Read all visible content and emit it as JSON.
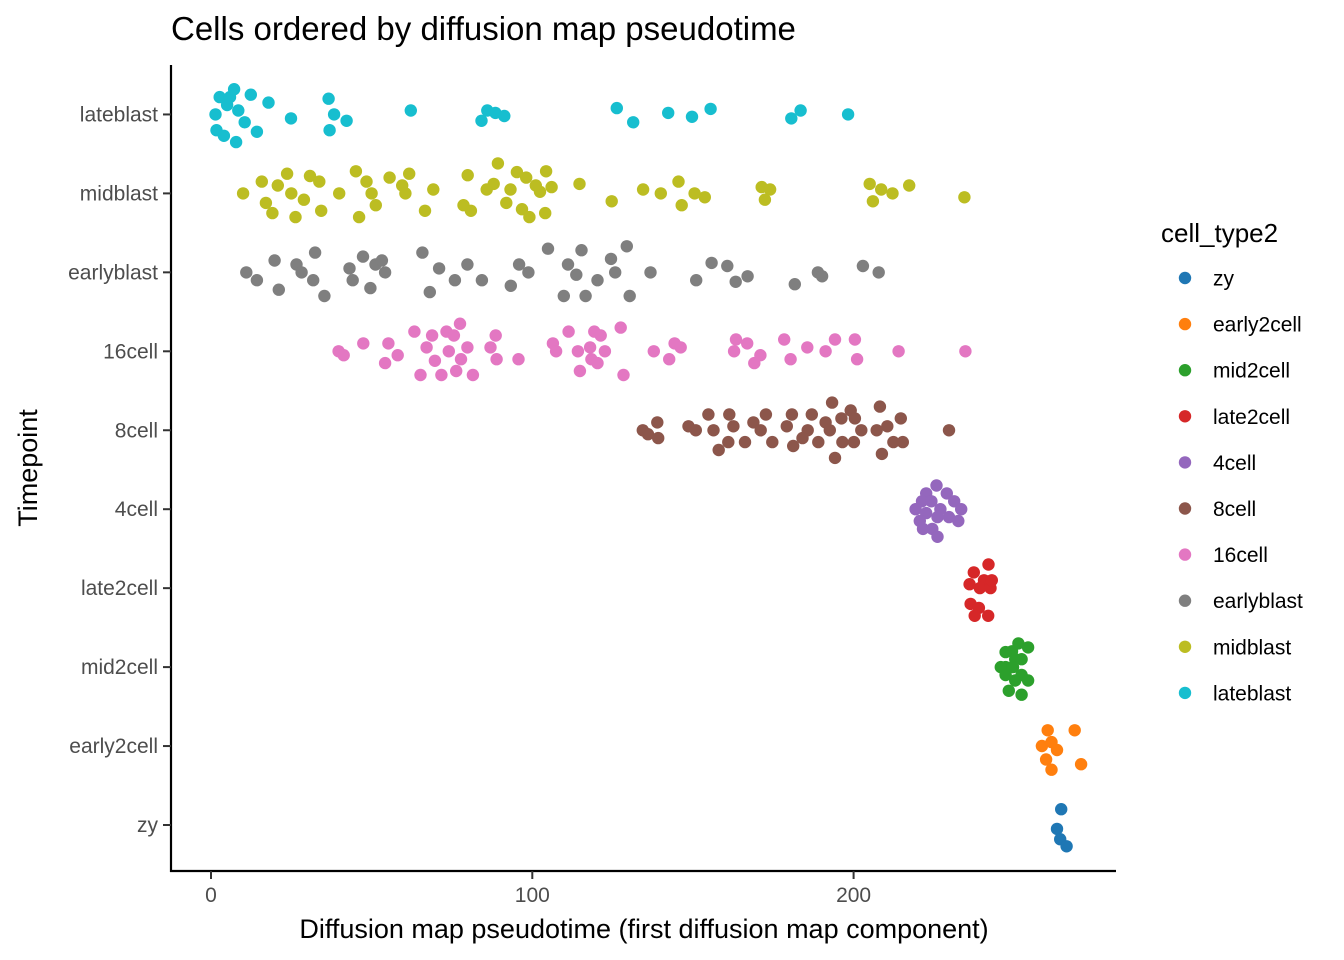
{
  "chart_data": {
    "type": "scatter",
    "title": "Cells ordered by diffusion map pseudotime",
    "xlabel": "Diffusion map pseudotime (first diffusion map component)",
    "ylabel": "Timepoint",
    "xlim": [
      -12,
      282
    ],
    "x_ticks": [
      0,
      100,
      200
    ],
    "categories": [
      "zy",
      "early2cell",
      "mid2cell",
      "late2cell",
      "4cell",
      "8cell",
      "16cell",
      "earlyblast",
      "midblast",
      "lateblast"
    ],
    "grid": false,
    "legend": {
      "title": "cell_type2",
      "placement": "right",
      "entries": [
        "zy",
        "early2cell",
        "mid2cell",
        "late2cell",
        "4cell",
        "8cell",
        "16cell",
        "earlyblast",
        "midblast",
        "lateblast"
      ]
    },
    "colors": {
      "zy": "#1f77b4",
      "early2cell": "#ff7f0e",
      "mid2cell": "#2ca02c",
      "late2cell": "#d62728",
      "4cell": "#9467bd",
      "8cell": "#8c564b",
      "16cell": "#e377c2",
      "earlyblast": "#7f7f7f",
      "midblast": "#bcbd22",
      "lateblast": "#17becf"
    },
    "series": [
      {
        "name": "zy",
        "points": [
          [
            264.6,
            0.2
          ],
          [
            263.3,
            -0.05
          ],
          [
            264.3,
            -0.18
          ],
          [
            266.3,
            -0.27
          ]
        ]
      },
      {
        "name": "early2cell",
        "points": [
          [
            260.4,
            0.2
          ],
          [
            268.8,
            0.2
          ],
          [
            258.6,
            0.0
          ],
          [
            261.6,
            0.05
          ],
          [
            263.3,
            -0.05
          ],
          [
            259.9,
            -0.17
          ],
          [
            270.8,
            -0.23
          ],
          [
            261.6,
            -0.3
          ]
        ]
      },
      {
        "name": "mid2cell",
        "points": [
          [
            251.3,
            0.3
          ],
          [
            249.3,
            0.2
          ],
          [
            254.3,
            0.25
          ],
          [
            247.3,
            0.19
          ],
          [
            250.3,
            0.1
          ],
          [
            247.3,
            0.0
          ],
          [
            252.3,
            0.1
          ],
          [
            245.8,
            0.0
          ],
          [
            249.6,
            0.0
          ],
          [
            252.3,
            -0.1
          ],
          [
            250.3,
            -0.17
          ],
          [
            254.3,
            -0.17
          ],
          [
            247.3,
            -0.1
          ],
          [
            248.3,
            -0.3
          ],
          [
            252.3,
            -0.35
          ]
        ]
      },
      {
        "name": "late2cell",
        "points": [
          [
            242.0,
            0.3
          ],
          [
            237.4,
            0.2
          ],
          [
            240.6,
            0.1
          ],
          [
            236.1,
            0.05
          ],
          [
            239.3,
            0.0
          ],
          [
            242.6,
            0.0
          ],
          [
            236.4,
            -0.2
          ],
          [
            243.0,
            0.1
          ],
          [
            239.0,
            -0.25
          ],
          [
            241.9,
            -0.35
          ],
          [
            237.7,
            -0.35
          ]
        ]
      },
      {
        "name": "4cell",
        "points": [
          [
            225.8,
            0.3
          ],
          [
            222.6,
            0.2
          ],
          [
            229.0,
            0.2
          ],
          [
            221.3,
            0.1
          ],
          [
            224.2,
            0.1
          ],
          [
            231.3,
            0.1
          ],
          [
            219.3,
            0.0
          ],
          [
            227.0,
            0.0
          ],
          [
            222.6,
            -0.05
          ],
          [
            233.5,
            0.0
          ],
          [
            226.1,
            -0.1
          ],
          [
            220.6,
            -0.15
          ],
          [
            229.7,
            -0.1
          ],
          [
            232.6,
            -0.15
          ],
          [
            224.5,
            -0.25
          ],
          [
            221.6,
            -0.25
          ],
          [
            226.1,
            -0.35
          ]
        ]
      },
      {
        "name": "8cell",
        "points": [
          [
            134.4,
            0.0
          ],
          [
            138.9,
            0.1
          ],
          [
            136.0,
            -0.05
          ],
          [
            139.2,
            -0.1
          ],
          [
            148.6,
            0.05
          ],
          [
            150.9,
            0.0
          ],
          [
            154.8,
            0.2
          ],
          [
            156.4,
            0.0
          ],
          [
            161.3,
            0.2
          ],
          [
            158.0,
            -0.25
          ],
          [
            162.6,
            0.05
          ],
          [
            166.2,
            -0.15
          ],
          [
            161.0,
            -0.15
          ],
          [
            168.8,
            0.1
          ],
          [
            171.1,
            0.0
          ],
          [
            172.7,
            0.2
          ],
          [
            174.7,
            -0.15
          ],
          [
            179.2,
            0.05
          ],
          [
            180.8,
            0.2
          ],
          [
            181.2,
            -0.2
          ],
          [
            185.7,
            0.0
          ],
          [
            184.1,
            -0.1
          ],
          [
            187.0,
            0.2
          ],
          [
            189.0,
            -0.15
          ],
          [
            191.3,
            0.1
          ],
          [
            193.3,
            0.35
          ],
          [
            192.6,
            0.0
          ],
          [
            194.2,
            -0.35
          ],
          [
            196.2,
            0.15
          ],
          [
            196.5,
            -0.15
          ],
          [
            199.1,
            0.25
          ],
          [
            200.4,
            0.15
          ],
          [
            200.1,
            -0.15
          ],
          [
            202.4,
            0.0
          ],
          [
            207.2,
            0.0
          ],
          [
            208.2,
            0.3
          ],
          [
            208.8,
            -0.3
          ],
          [
            210.5,
            0.05
          ],
          [
            212.4,
            -0.15
          ],
          [
            214.7,
            0.15
          ],
          [
            215.3,
            -0.15
          ],
          [
            229.7,
            0.0
          ]
        ]
      },
      {
        "name": "16cell",
        "points": [
          [
            39.7,
            0.0
          ],
          [
            41.3,
            -0.05
          ],
          [
            47.4,
            0.1
          ],
          [
            55.2,
            0.1
          ],
          [
            54.2,
            -0.15
          ],
          [
            58.1,
            -0.05
          ],
          [
            63.3,
            0.25
          ],
          [
            65.2,
            -0.3
          ],
          [
            67.1,
            0.05
          ],
          [
            68.8,
            0.2
          ],
          [
            69.7,
            -0.12
          ],
          [
            71.7,
            -0.3
          ],
          [
            73.3,
            0.25
          ],
          [
            74.0,
            0.0
          ],
          [
            75.6,
            0.2
          ],
          [
            77.5,
            0.35
          ],
          [
            76.3,
            -0.25
          ],
          [
            77.8,
            -0.1
          ],
          [
            79.8,
            0.05
          ],
          [
            81.5,
            -0.3
          ],
          [
            87.0,
            0.05
          ],
          [
            88.6,
            0.2
          ],
          [
            88.9,
            -0.1
          ],
          [
            95.7,
            -0.1
          ],
          [
            106.4,
            0.1
          ],
          [
            107.4,
            0.0
          ],
          [
            111.3,
            0.25
          ],
          [
            114.2,
            0.0
          ],
          [
            114.8,
            -0.25
          ],
          [
            118.0,
            0.05
          ],
          [
            119.3,
            0.25
          ],
          [
            118.4,
            -0.1
          ],
          [
            120.3,
            -0.15
          ],
          [
            121.3,
            0.2
          ],
          [
            122.6,
            0.0
          ],
          [
            127.5,
            0.3
          ],
          [
            128.4,
            -0.3
          ],
          [
            137.8,
            0.0
          ],
          [
            142.6,
            -0.1
          ],
          [
            144.3,
            0.1
          ],
          [
            146.2,
            0.05
          ],
          [
            163.4,
            0.15
          ],
          [
            162.8,
            0.0
          ],
          [
            166.9,
            0.1
          ],
          [
            169.1,
            -0.15
          ],
          [
            171.0,
            -0.05
          ],
          [
            178.4,
            0.15
          ],
          [
            180.4,
            -0.1
          ],
          [
            185.6,
            0.05
          ],
          [
            191.3,
            0.0
          ],
          [
            194.2,
            0.15
          ],
          [
            200.4,
            0.15
          ],
          [
            201.1,
            -0.1
          ],
          [
            214.0,
            0.0
          ],
          [
            234.8,
            0.0
          ]
        ]
      },
      {
        "name": "earlyblast",
        "points": [
          [
            11.0,
            0.0
          ],
          [
            14.3,
            -0.1
          ],
          [
            19.8,
            0.15
          ],
          [
            21.1,
            -0.22
          ],
          [
            26.6,
            0.1
          ],
          [
            28.2,
            0.0
          ],
          [
            31.8,
            -0.1
          ],
          [
            32.4,
            0.25
          ],
          [
            35.3,
            -0.3
          ],
          [
            43.1,
            0.05
          ],
          [
            44.1,
            -0.1
          ],
          [
            47.3,
            0.2
          ],
          [
            49.6,
            -0.2
          ],
          [
            51.2,
            0.1
          ],
          [
            53.2,
            0.15
          ],
          [
            54.2,
            0.0
          ],
          [
            65.8,
            0.25
          ],
          [
            68.1,
            -0.25
          ],
          [
            71.0,
            0.05
          ],
          [
            75.9,
            -0.1
          ],
          [
            79.8,
            0.1
          ],
          [
            84.3,
            -0.1
          ],
          [
            93.3,
            -0.17
          ],
          [
            95.9,
            0.1
          ],
          [
            98.8,
            0.0
          ],
          [
            104.9,
            0.3
          ],
          [
            109.8,
            -0.3
          ],
          [
            111.1,
            0.1
          ],
          [
            113.7,
            -0.03
          ],
          [
            115.3,
            0.28
          ],
          [
            116.6,
            -0.3
          ],
          [
            120.3,
            -0.1
          ],
          [
            124.5,
            0.17
          ],
          [
            125.8,
            0.0
          ],
          [
            129.4,
            0.33
          ],
          [
            130.3,
            -0.3
          ],
          [
            136.8,
            0.0
          ],
          [
            151.0,
            -0.1
          ],
          [
            155.8,
            0.12
          ],
          [
            160.7,
            0.08
          ],
          [
            163.3,
            -0.12
          ],
          [
            167.0,
            -0.05
          ],
          [
            181.7,
            -0.15
          ],
          [
            188.9,
            0.0
          ],
          [
            190.2,
            -0.05
          ],
          [
            202.9,
            0.08
          ],
          [
            207.8,
            0.0
          ]
        ]
      },
      {
        "name": "midblast",
        "points": [
          [
            10.0,
            0.0
          ],
          [
            15.8,
            0.15
          ],
          [
            17.1,
            -0.12
          ],
          [
            19.1,
            -0.25
          ],
          [
            20.8,
            0.1
          ],
          [
            23.7,
            0.25
          ],
          [
            25.0,
            0.0
          ],
          [
            26.3,
            -0.3
          ],
          [
            28.9,
            -0.08
          ],
          [
            30.8,
            0.22
          ],
          [
            33.7,
            0.15
          ],
          [
            34.3,
            -0.22
          ],
          [
            39.9,
            0.0
          ],
          [
            45.1,
            0.28
          ],
          [
            46.1,
            -0.3
          ],
          [
            48.4,
            0.15
          ],
          [
            50.0,
            0.0
          ],
          [
            51.3,
            -0.15
          ],
          [
            55.6,
            0.2
          ],
          [
            59.5,
            0.1
          ],
          [
            60.5,
            0.0
          ],
          [
            61.7,
            0.25
          ],
          [
            66.6,
            -0.22
          ],
          [
            69.2,
            0.05
          ],
          [
            79.9,
            0.23
          ],
          [
            78.6,
            -0.15
          ],
          [
            80.9,
            -0.22
          ],
          [
            85.8,
            0.05
          ],
          [
            88.0,
            0.12
          ],
          [
            89.3,
            0.38
          ],
          [
            91.9,
            -0.12
          ],
          [
            93.2,
            0.05
          ],
          [
            95.2,
            0.27
          ],
          [
            96.8,
            -0.2
          ],
          [
            98.1,
            0.2
          ],
          [
            99.1,
            -0.3
          ],
          [
            101.1,
            0.1
          ],
          [
            102.4,
            0.02
          ],
          [
            104.0,
            -0.25
          ],
          [
            104.3,
            0.28
          ],
          [
            106.0,
            0.08
          ],
          [
            114.7,
            0.12
          ],
          [
            124.7,
            -0.1
          ],
          [
            134.5,
            0.05
          ],
          [
            140.0,
            0.0
          ],
          [
            145.5,
            0.15
          ],
          [
            146.5,
            -0.15
          ],
          [
            150.5,
            0.0
          ],
          [
            153.7,
            -0.05
          ],
          [
            171.4,
            0.08
          ],
          [
            172.4,
            -0.08
          ],
          [
            174.0,
            0.05
          ],
          [
            205.0,
            0.12
          ],
          [
            206.0,
            -0.1
          ],
          [
            208.6,
            0.05
          ],
          [
            212.1,
            0.0
          ],
          [
            217.3,
            0.1
          ],
          [
            234.5,
            -0.05
          ]
        ]
      },
      {
        "name": "lateblast",
        "points": [
          [
            1.4,
            0.0
          ],
          [
            2.7,
            0.22
          ],
          [
            1.7,
            -0.2
          ],
          [
            4.0,
            -0.27
          ],
          [
            5.0,
            0.12
          ],
          [
            5.9,
            0.22
          ],
          [
            7.2,
            0.32
          ],
          [
            7.8,
            -0.35
          ],
          [
            8.5,
            0.05
          ],
          [
            10.5,
            -0.1
          ],
          [
            12.4,
            0.25
          ],
          [
            14.3,
            -0.22
          ],
          [
            17.9,
            0.15
          ],
          [
            24.9,
            -0.05
          ],
          [
            36.6,
            0.2
          ],
          [
            36.9,
            -0.2
          ],
          [
            38.3,
            0.0
          ],
          [
            42.2,
            -0.08
          ],
          [
            62.2,
            0.05
          ],
          [
            84.2,
            -0.08
          ],
          [
            86.0,
            0.05
          ],
          [
            88.5,
            0.02
          ],
          [
            91.3,
            -0.02
          ],
          [
            126.3,
            0.08
          ],
          [
            131.4,
            -0.1
          ],
          [
            142.3,
            0.02
          ],
          [
            149.7,
            -0.03
          ],
          [
            155.5,
            0.07
          ],
          [
            180.6,
            -0.05
          ],
          [
            183.5,
            0.05
          ],
          [
            198.3,
            0.0
          ]
        ]
      }
    ]
  }
}
